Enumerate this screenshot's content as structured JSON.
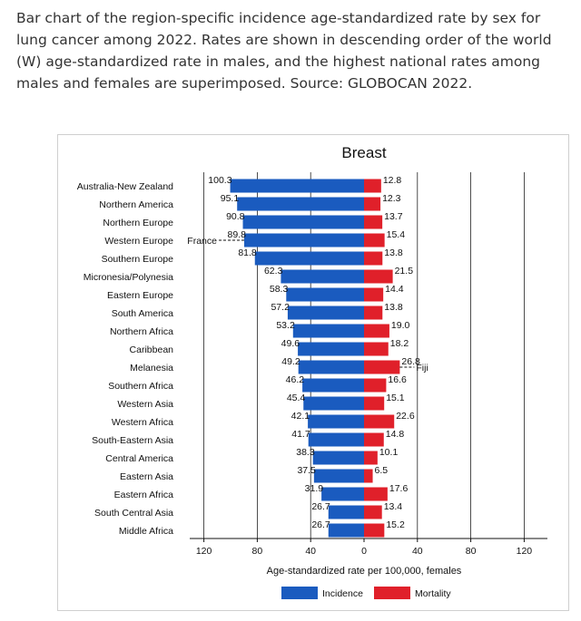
{
  "caption": "Bar chart of the region-specific incidence age-standardized rate by sex for lung cancer among 2022. Rates are shown in descending order of the world (W) age-standardized rate in males, and the highest national rates among males and females are superimposed. Source: GLOBOCAN 2022.",
  "chart_data": {
    "type": "bar",
    "orientation": "horizontal-butterfly",
    "title": "Breast",
    "xlabel": "Age-standardized rate per 100,000, females",
    "x_ticks": [
      "120",
      "80",
      "40",
      "0",
      "40",
      "80",
      "120"
    ],
    "xlim": [
      -120,
      120
    ],
    "grid": "vertical",
    "legend_position": "bottom",
    "categories": [
      "Australia-New Zealand",
      "Northern America",
      "Northern Europe",
      "Western Europe",
      "Southern Europe",
      "Micronesia/Polynesia",
      "Eastern Europe",
      "South America",
      "Northern Africa",
      "Caribbean",
      "Melanesia",
      "Southern Africa",
      "Western Asia",
      "Western Africa",
      "South-Eastern Asia",
      "Central America",
      "Eastern Asia",
      "Eastern Africa",
      "South Central Asia",
      "Middle Africa"
    ],
    "series": [
      {
        "name": "Incidence",
        "color": "#1a5bbf",
        "side": "left",
        "values": [
          100.3,
          95.1,
          90.8,
          89.8,
          81.8,
          62.3,
          58.3,
          57.2,
          53.2,
          49.6,
          49.2,
          46.2,
          45.4,
          42.1,
          41.7,
          38.3,
          37.5,
          31.9,
          26.7,
          26.7
        ]
      },
      {
        "name": "Mortality",
        "color": "#e0202a",
        "side": "right",
        "values": [
          12.8,
          12.3,
          13.7,
          15.4,
          13.8,
          21.5,
          14.4,
          13.8,
          19.0,
          18.2,
          26.8,
          16.6,
          15.1,
          22.6,
          14.8,
          10.1,
          6.5,
          17.6,
          13.4,
          15.2
        ]
      }
    ],
    "value_labels": {
      "incidence": [
        "100.3",
        "95.1",
        "90.8",
        "89.8",
        "81.8",
        "62.3",
        "58.3",
        "57.2",
        "53.2",
        "49.6",
        "49.2",
        "46.2",
        "45.4",
        "42.1",
        "41.7",
        "38.3",
        "37.5",
        "31.9",
        "26.7",
        "26.7"
      ],
      "mortality": [
        "12.8",
        "12.3",
        "13.7",
        "15.4",
        "13.8",
        "21.5",
        "14.4",
        "13.8",
        "19.0",
        "18.2",
        "26.8",
        "16.6",
        "15.1",
        "22.6",
        "14.8",
        "10.1",
        "6.5",
        "17.6",
        "13.4",
        "15.2"
      ]
    },
    "annotations": [
      {
        "text": "France",
        "category": "Western Europe",
        "series": "Incidence"
      },
      {
        "text": "Fiji",
        "category": "Melanesia",
        "series": "Mortality"
      }
    ]
  }
}
